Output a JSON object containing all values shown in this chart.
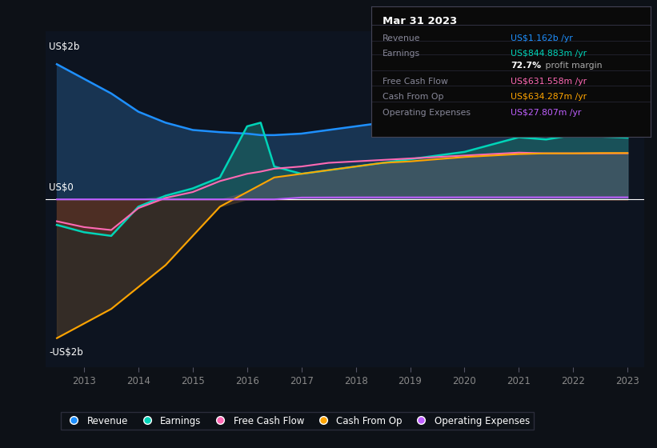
{
  "bg_color": "#0d1117",
  "plot_bg_color": "#0d1420",
  "years": [
    2012.5,
    2013,
    2013.5,
    2014,
    2014.5,
    2015,
    2015.5,
    2016,
    2016.25,
    2016.5,
    2017,
    2017.5,
    2018,
    2018.5,
    2019,
    2019.5,
    2020,
    2020.5,
    2021,
    2021.5,
    2022,
    2022.5,
    2023
  ],
  "revenue": [
    1.85,
    1.65,
    1.45,
    1.2,
    1.05,
    0.95,
    0.92,
    0.9,
    0.88,
    0.88,
    0.9,
    0.95,
    1.0,
    1.05,
    1.1,
    1.15,
    1.2,
    1.25,
    1.3,
    1.3,
    1.25,
    1.2,
    1.162
  ],
  "earnings": [
    -0.35,
    -0.45,
    -0.5,
    -0.1,
    0.05,
    0.15,
    0.3,
    1.0,
    1.05,
    0.45,
    0.35,
    0.4,
    0.45,
    0.5,
    0.55,
    0.6,
    0.65,
    0.75,
    0.85,
    0.82,
    0.88,
    0.86,
    0.845
  ],
  "free_cash_flow": [
    -0.3,
    -0.38,
    -0.42,
    -0.12,
    0.02,
    0.1,
    0.25,
    0.35,
    0.38,
    0.42,
    0.45,
    0.5,
    0.52,
    0.54,
    0.56,
    0.58,
    0.6,
    0.62,
    0.64,
    0.63,
    0.63,
    0.63,
    0.632
  ],
  "cash_from_op": [
    -1.9,
    -1.7,
    -1.5,
    -1.2,
    -0.9,
    -0.5,
    -0.1,
    0.1,
    0.2,
    0.3,
    0.35,
    0.4,
    0.45,
    0.5,
    0.52,
    0.55,
    0.58,
    0.6,
    0.62,
    0.63,
    0.63,
    0.634,
    0.634
  ],
  "operating_expenses": [
    0.0,
    0.0,
    0.0,
    0.0,
    0.0,
    0.0,
    0.0,
    0.0,
    0.0,
    0.0,
    0.025,
    0.026,
    0.027,
    0.027,
    0.027,
    0.027,
    0.028,
    0.028,
    0.028,
    0.028,
    0.028,
    0.028,
    0.028
  ],
  "revenue_color": "#1e90ff",
  "earnings_color": "#00d4b8",
  "free_cash_flow_color": "#ff69b4",
  "cash_from_op_color": "#ffa500",
  "operating_expenses_color": "#bf5fff",
  "revenue_fill": "#1a3a5c",
  "earnings_fill_pos": "#1a5c5c",
  "earnings_fill_neg": "#5c1a1a",
  "cash_fill_pos": "#5a5a6a",
  "cash_fill_neg": "#4a3a2a",
  "xlim_left": 2012.3,
  "xlim_right": 2023.3,
  "ylim_bottom": -2.3,
  "ylim_top": 2.3,
  "xtick_years": [
    2013,
    2014,
    2015,
    2016,
    2017,
    2018,
    2019,
    2020,
    2021,
    2022,
    2023
  ],
  "info_label": "Mar 31 2023",
  "info_rows": [
    {
      "label": "Revenue",
      "value": "US$1.162b /yr",
      "color": "#1e90ff",
      "bold_part": ""
    },
    {
      "label": "Earnings",
      "value": "US$844.883m /yr",
      "color": "#00d4b8",
      "bold_part": ""
    },
    {
      "label": "",
      "value": "72.7% profit margin",
      "color": "#ffffff",
      "bold_part": "72.7%"
    },
    {
      "label": "Free Cash Flow",
      "value": "US$631.558m /yr",
      "color": "#ff69b4",
      "bold_part": ""
    },
    {
      "label": "Cash From Op",
      "value": "US$634.287m /yr",
      "color": "#ffa500",
      "bold_part": ""
    },
    {
      "label": "Operating Expenses",
      "value": "US$27.807m /yr",
      "color": "#bf5fff",
      "bold_part": ""
    }
  ],
  "legend_items": [
    {
      "label": "Revenue",
      "color": "#1e90ff"
    },
    {
      "label": "Earnings",
      "color": "#00d4b8"
    },
    {
      "label": "Free Cash Flow",
      "color": "#ff69b4"
    },
    {
      "label": "Cash From Op",
      "color": "#ffa500"
    },
    {
      "label": "Operating Expenses",
      "color": "#bf5fff"
    }
  ]
}
